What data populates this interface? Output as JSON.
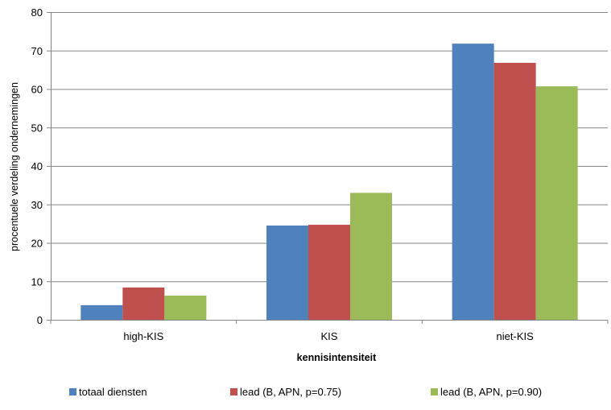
{
  "chart_data": {
    "type": "bar",
    "title": "",
    "xlabel": "kennisintensiteit",
    "ylabel": "procentuele verdeling ondernemingen",
    "ylim": [
      0,
      80
    ],
    "yticks": [
      0,
      10,
      20,
      30,
      40,
      50,
      60,
      70,
      80
    ],
    "categories": [
      "high-KIS",
      "KIS",
      "niet-KIS"
    ],
    "series": [
      {
        "name": "totaal diensten",
        "color": "#4F81BD",
        "values": [
          3.8,
          24.5,
          71.8
        ]
      },
      {
        "name": "lead (B, APN, p=0.75)",
        "color": "#C0504D",
        "values": [
          8.4,
          24.7,
          66.8
        ]
      },
      {
        "name": "lead (B, APN, p=0.90)",
        "color": "#9BBB59",
        "values": [
          6.3,
          33.0,
          60.7
        ]
      }
    ],
    "grid": true,
    "legend_position": "bottom"
  }
}
